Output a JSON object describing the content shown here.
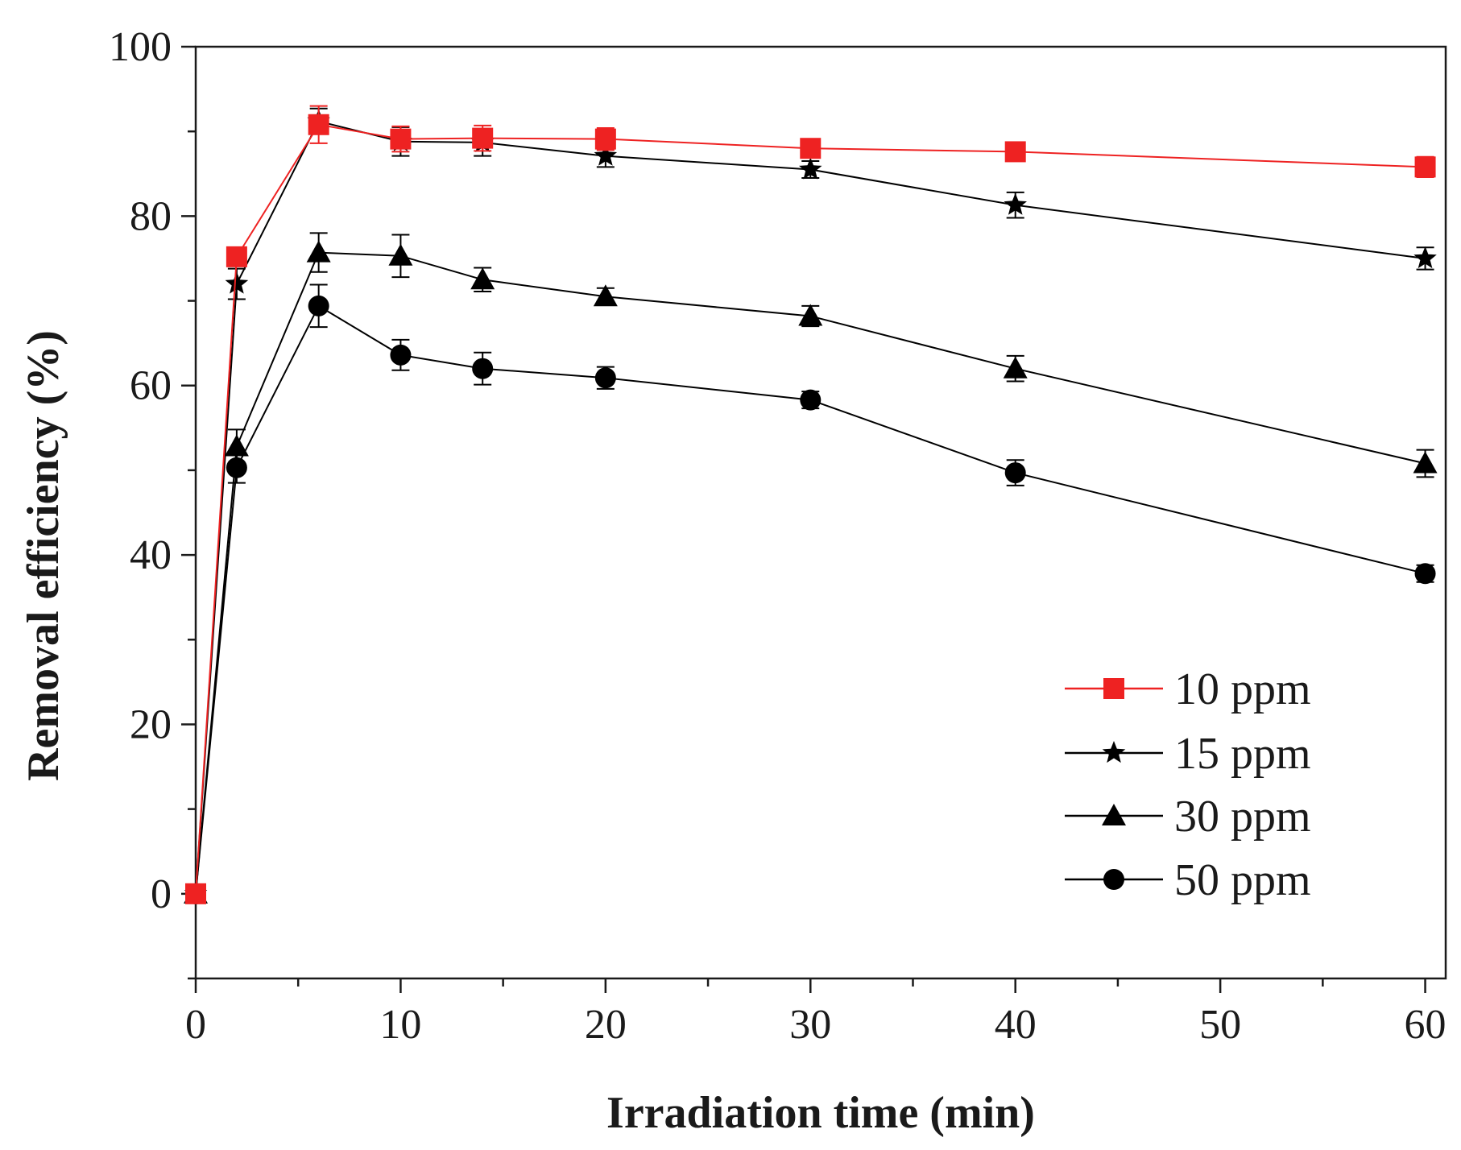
{
  "chart_data": {
    "type": "line",
    "title": "",
    "xlabel": "Irradiation time (min)",
    "ylabel": "Removal efficiency (%)",
    "xlim": [
      0,
      61
    ],
    "ylim": [
      -10,
      100
    ],
    "xticks": [
      0,
      10,
      20,
      30,
      40,
      50,
      60
    ],
    "xtick_labels": [
      "0",
      "10",
      "20",
      "30",
      "40",
      "50",
      "60"
    ],
    "yticks": [
      0,
      20,
      40,
      60,
      80,
      100
    ],
    "ytick_labels": [
      "0",
      "20",
      "40",
      "60",
      "80",
      "100"
    ],
    "grid": false,
    "legend_position": "lower-right",
    "x": [
      0,
      2,
      6,
      10,
      14,
      20,
      30,
      40,
      60
    ],
    "series": [
      {
        "name": "10 ppm",
        "marker": "square",
        "color": "#ee2222",
        "values": [
          0,
          75.2,
          90.8,
          89.1,
          89.2,
          89.1,
          88.0,
          87.6,
          85.8
        ],
        "errors": [
          0,
          1.0,
          2.2,
          1.5,
          1.5,
          1.3,
          0.8,
          1.0,
          1.2
        ]
      },
      {
        "name": "15 ppm",
        "marker": "star",
        "color": "#000000",
        "values": [
          0,
          72.0,
          91.2,
          88.8,
          88.7,
          87.1,
          85.5,
          81.3,
          75.0
        ],
        "errors": [
          0,
          1.8,
          1.5,
          1.7,
          1.6,
          1.3,
          1.0,
          1.5,
          1.3
        ]
      },
      {
        "name": "30 ppm",
        "marker": "triangle",
        "color": "#000000",
        "values": [
          0,
          52.8,
          75.7,
          75.3,
          72.5,
          70.5,
          68.2,
          62.0,
          50.8
        ],
        "errors": [
          0,
          2.0,
          2.3,
          2.5,
          1.4,
          1.0,
          1.2,
          1.5,
          1.6
        ]
      },
      {
        "name": "50 ppm",
        "marker": "circle",
        "color": "#000000",
        "values": [
          0,
          50.3,
          69.4,
          63.6,
          62.0,
          60.9,
          58.3,
          49.7,
          37.8
        ],
        "errors": [
          0,
          1.8,
          2.5,
          1.8,
          1.9,
          1.3,
          1.0,
          1.5,
          1.0
        ]
      }
    ]
  }
}
